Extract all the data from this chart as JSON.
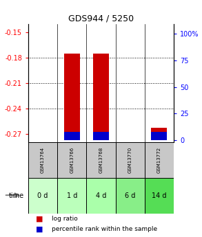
{
  "title": "GDS944 / 5250",
  "samples": [
    "GSM13764",
    "GSM13766",
    "GSM13768",
    "GSM13770",
    "GSM13772"
  ],
  "time_labels": [
    "0 d",
    "1 d",
    "4 d",
    "6 d",
    "14 d"
  ],
  "time_colors": [
    "#ccffcc",
    "#bbffbb",
    "#aaffaa",
    "#88ee88",
    "#55dd55"
  ],
  "log_ratio_values": [
    -0.27,
    -0.175,
    -0.175,
    -0.27,
    -0.263
  ],
  "log_ratio_bottoms": [
    -0.27,
    -0.27,
    -0.27,
    -0.27,
    -0.27
  ],
  "percentile_pct": [
    0,
    8,
    8,
    0,
    8
  ],
  "ylim_left": [
    -0.28,
    -0.14
  ],
  "ylim_right": [
    -1.867,
    109.333
  ],
  "yticks_left": [
    -0.27,
    -0.24,
    -0.21,
    -0.18,
    -0.15
  ],
  "yticks_right": [
    0,
    25,
    50,
    75,
    100
  ],
  "bar_color_red": "#cc0000",
  "bar_color_blue": "#0000cc",
  "sample_bg_color": "#c8c8c8",
  "legend_red_label": "log ratio",
  "legend_blue_label": "percentile rank within the sample",
  "bar_width": 0.55,
  "gridline_yticks": [
    -0.18,
    -0.21,
    -0.24
  ]
}
